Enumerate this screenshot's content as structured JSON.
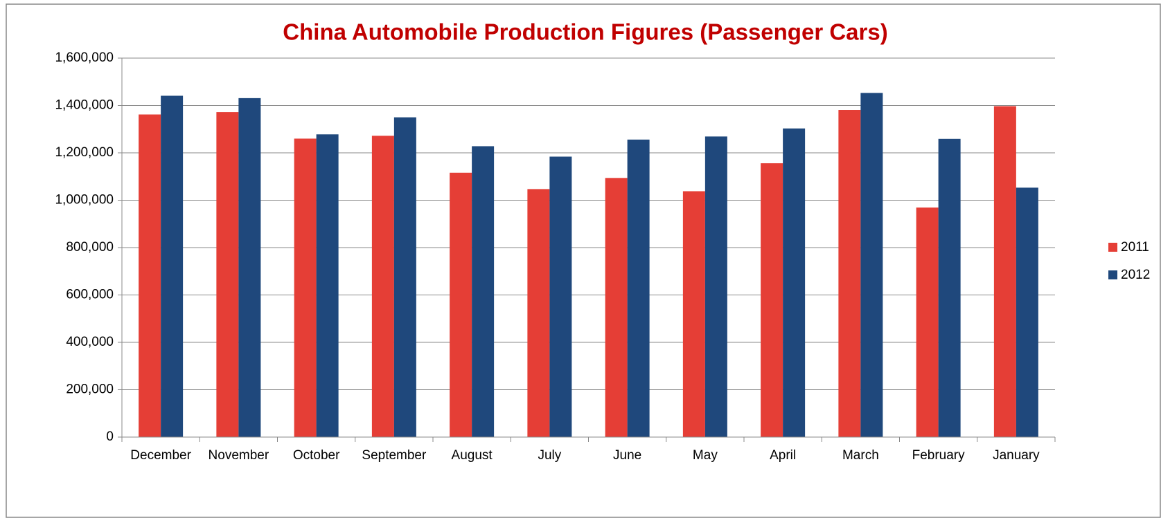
{
  "chart_data": {
    "type": "bar",
    "title": "China Automobile Production Figures (Passenger Cars)",
    "categories": [
      "December",
      "November",
      "October",
      "September",
      "August",
      "July",
      "June",
      "May",
      "April",
      "March",
      "February",
      "January"
    ],
    "series": [
      {
        "name": "2011",
        "color": "#e53e36",
        "values": [
          1362000,
          1372000,
          1260000,
          1272000,
          1116000,
          1047000,
          1094000,
          1038000,
          1156000,
          1381000,
          969000,
          1397000
        ]
      },
      {
        "name": "2012",
        "color": "#1f487c",
        "values": [
          1441000,
          1431000,
          1278000,
          1350000,
          1228000,
          1184000,
          1256000,
          1269000,
          1303000,
          1453000,
          1259000,
          1053000
        ]
      }
    ],
    "ylim": [
      0,
      1600000
    ],
    "yticks": [
      0,
      {
        "value": 200000,
        "label": "200,000"
      },
      {
        "value": 400000,
        "label": "400,000"
      },
      {
        "value": 600000,
        "label": "600,000"
      },
      {
        "value": 800000,
        "label": "800,000"
      },
      {
        "value": 1000000,
        "label": "1,000,000"
      },
      {
        "value": 1200000,
        "label": "1,200,000"
      },
      {
        "value": 1400000,
        "label": "1,400,000"
      },
      {
        "value": 1600000,
        "label": "1,600,000"
      }
    ],
    "grid": true,
    "legend": "right"
  }
}
